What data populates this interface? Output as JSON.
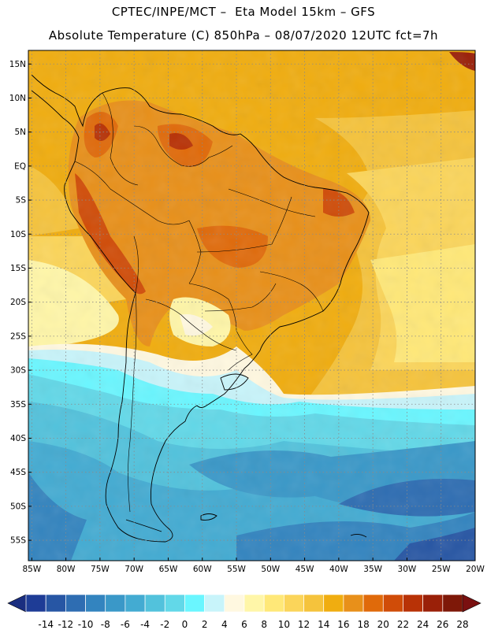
{
  "header": {
    "line1": "CPTEC/INPE/MCT –  Eta Model 15km – GFS",
    "line2": "Absolute Temperature (C) 850hPa – 08/07/2020 12UTC fct=7h"
  },
  "map": {
    "latitude_labels": [
      "15N",
      "10N",
      "5N",
      "EQ",
      "5S",
      "10S",
      "15S",
      "20S",
      "25S",
      "30S",
      "35S",
      "40S",
      "45S",
      "50S",
      "55S"
    ],
    "latitude_values": [
      15,
      10,
      5,
      0,
      -5,
      -10,
      -15,
      -20,
      -25,
      -30,
      -35,
      -40,
      -45,
      -50,
      -55
    ],
    "longitude_labels": [
      "85W",
      "80W",
      "75W",
      "70W",
      "65W",
      "60W",
      "55W",
      "50W",
      "45W",
      "40W",
      "35W",
      "30W",
      "25W",
      "20W"
    ],
    "longitude_values": [
      -85,
      -80,
      -75,
      -70,
      -65,
      -60,
      -55,
      -50,
      -45,
      -40,
      -35,
      -30,
      -25,
      -20
    ],
    "lat_range": [
      -58,
      17
    ],
    "lon_range": [
      -85.5,
      -20
    ]
  },
  "colorbar": {
    "tick_labels": [
      "-14",
      "-12",
      "-10",
      "-8",
      "-6",
      "-4",
      "-2",
      "0",
      "2",
      "4",
      "6",
      "8",
      "10",
      "12",
      "14",
      "16",
      "18",
      "20",
      "22",
      "24",
      "26",
      "28"
    ],
    "colors": [
      "#1e3c96",
      "#2756a4",
      "#2e6db2",
      "#3384bf",
      "#3a98c8",
      "#43abd2",
      "#52c2dc",
      "#62d8e8",
      "#6af6ff",
      "#c8f4fa",
      "#fff8e0",
      "#fff6a8",
      "#ffe878",
      "#fbd55a",
      "#f5c33c",
      "#f0ad10",
      "#e8901a",
      "#e06a0a",
      "#d04c08",
      "#b83206",
      "#9a2008",
      "#7e1808"
    ],
    "arrow_low_color": "#1a2e80",
    "arrow_high_color": "#7a1010"
  }
}
